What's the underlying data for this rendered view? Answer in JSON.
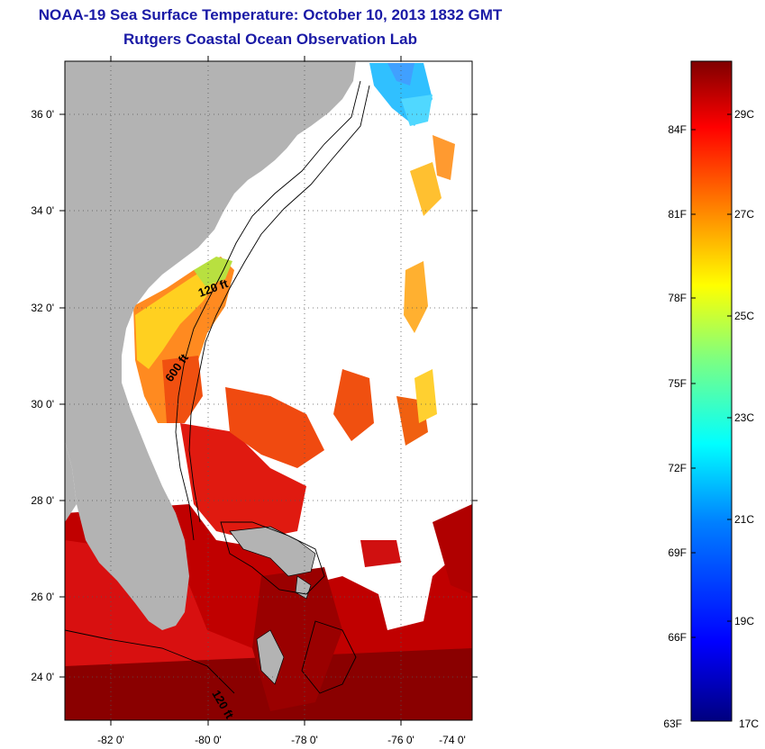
{
  "header": {
    "title": "NOAA-19 Sea Surface Temperature:  October 10, 2013 1832 GMT",
    "subtitle": "Rutgers Coastal Ocean Observation Lab"
  },
  "map": {
    "lon_ticks": [
      "-82 0'",
      "-80 0'",
      "-78 0'",
      "-76 0'",
      "-74 0'"
    ],
    "lat_ticks": [
      "36 0'",
      "34 0'",
      "32 0'",
      "30 0'",
      "28 0'",
      "26 0'",
      "24 0'"
    ],
    "contour_labels": [
      "120 ft",
      "600 ft",
      "120 ft"
    ],
    "colors": {
      "land": "#b3b3b3",
      "cloud": "#ffffff"
    }
  },
  "colorbar": {
    "fahrenheit": [
      "84F",
      "81F",
      "78F",
      "75F",
      "72F",
      "69F",
      "66F",
      "63F"
    ],
    "celsius": [
      "29C",
      "27C",
      "25C",
      "23C",
      "21C",
      "19C",
      "17C"
    ],
    "stops": [
      "#00007f",
      "#0000ff",
      "#007fff",
      "#00ffff",
      "#7fff7f",
      "#ffff00",
      "#ff7f00",
      "#ff0000",
      "#7f0000"
    ]
  }
}
